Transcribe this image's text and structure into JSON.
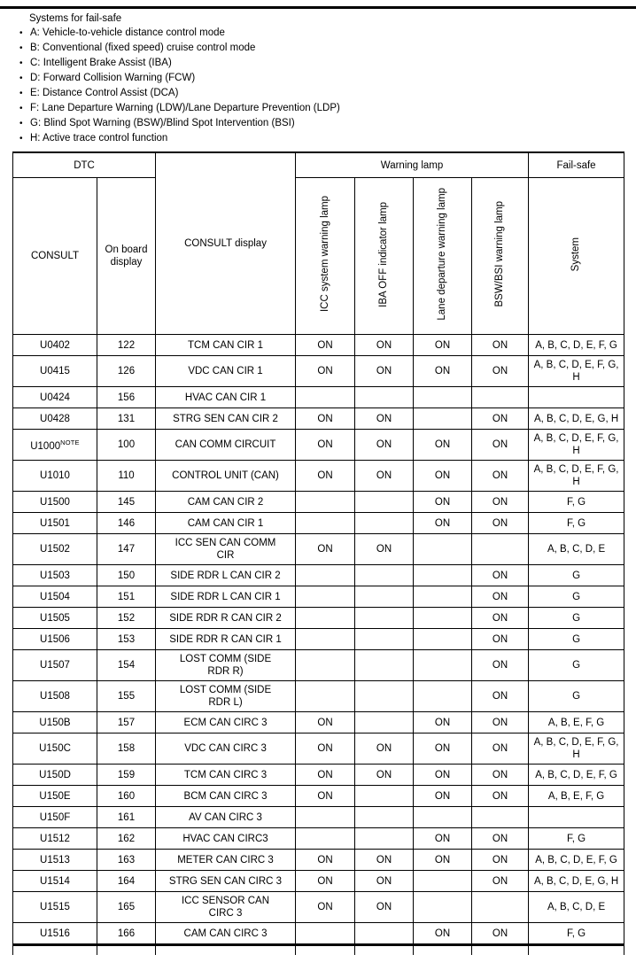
{
  "page": {
    "intro_title": "Systems for fail-safe",
    "bullets": [
      "A: Vehicle-to-vehicle distance control mode",
      "B: Conventional (fixed speed) cruise control mode",
      "C: Intelligent Brake Assist (IBA)",
      "D: Forward Collision Warning (FCW)",
      "E: Distance Control Assist (DCA)",
      "F: Lane Departure Warning (LDW)/Lane Departure Prevention (LDP)",
      "G: Blind Spot Warning (BSW)/Blind Spot Intervention (BSI)",
      "H: Active trace control function"
    ]
  },
  "table": {
    "header": {
      "dtc": "DTC",
      "consult": "CONSULT",
      "onboard": "On board\ndisplay",
      "consult_display": "CONSULT display",
      "warning_lamp": "Warning lamp",
      "lamp_cols": [
        "ICC system warning lamp",
        "IBA OFF indicator lamp",
        "Lane departure warning lamp",
        "BSW/BSI warning lamp"
      ],
      "fail_safe": "Fail-safe",
      "system": "System"
    },
    "rows": [
      {
        "consult": "U0402",
        "note": "",
        "onboard": "122",
        "display": "TCM CAN CIR 1",
        "lamps": [
          "ON",
          "ON",
          "ON",
          "ON"
        ],
        "system": "A, B, C, D, E, F, G"
      },
      {
        "consult": "U0415",
        "note": "",
        "onboard": "126",
        "display": "VDC CAN CIR 1",
        "lamps": [
          "ON",
          "ON",
          "ON",
          "ON"
        ],
        "system": "A, B, C, D, E, F, G,\nH"
      },
      {
        "consult": "U0424",
        "note": "",
        "onboard": "156",
        "display": "HVAC CAN CIR 1",
        "lamps": [
          "",
          "",
          "",
          ""
        ],
        "system": ""
      },
      {
        "consult": "U0428",
        "note": "",
        "onboard": "131",
        "display": "STRG SEN CAN CIR 2",
        "lamps": [
          "ON",
          "ON",
          "",
          "ON"
        ],
        "system": "A, B, C, D, E, G, H"
      },
      {
        "consult": "U1000",
        "note": "NOTE",
        "onboard": "100",
        "display": "CAN COMM CIRCUIT",
        "lamps": [
          "ON",
          "ON",
          "ON",
          "ON"
        ],
        "system": "A, B, C, D, E, F, G,\nH"
      },
      {
        "consult": "U1010",
        "note": "",
        "onboard": "110",
        "display": "CONTROL UNIT (CAN)",
        "lamps": [
          "ON",
          "ON",
          "ON",
          "ON"
        ],
        "system": "A, B, C, D, E, F, G,\nH"
      },
      {
        "consult": "U1500",
        "note": "",
        "onboard": "145",
        "display": "CAM CAN CIR 2",
        "lamps": [
          "",
          "",
          "ON",
          "ON"
        ],
        "system": "F, G"
      },
      {
        "consult": "U1501",
        "note": "",
        "onboard": "146",
        "display": "CAM CAN CIR 1",
        "lamps": [
          "",
          "",
          "ON",
          "ON"
        ],
        "system": "F, G"
      },
      {
        "consult": "U1502",
        "note": "",
        "onboard": "147",
        "display": "ICC SEN CAN COMM\nCIR",
        "lamps": [
          "ON",
          "ON",
          "",
          ""
        ],
        "system": "A, B, C, D, E"
      },
      {
        "consult": "U1503",
        "note": "",
        "onboard": "150",
        "display": "SIDE RDR L CAN CIR 2",
        "lamps": [
          "",
          "",
          "",
          "ON"
        ],
        "system": "G"
      },
      {
        "consult": "U1504",
        "note": "",
        "onboard": "151",
        "display": "SIDE RDR L CAN CIR 1",
        "lamps": [
          "",
          "",
          "",
          "ON"
        ],
        "system": "G"
      },
      {
        "consult": "U1505",
        "note": "",
        "onboard": "152",
        "display": "SIDE RDR R CAN CIR 2",
        "lamps": [
          "",
          "",
          "",
          "ON"
        ],
        "system": "G"
      },
      {
        "consult": "U1506",
        "note": "",
        "onboard": "153",
        "display": "SIDE RDR R CAN CIR 1",
        "lamps": [
          "",
          "",
          "",
          "ON"
        ],
        "system": "G"
      },
      {
        "consult": "U1507",
        "note": "",
        "onboard": "154",
        "display": "LOST COMM (SIDE\nRDR R)",
        "lamps": [
          "",
          "",
          "",
          "ON"
        ],
        "system": "G"
      },
      {
        "consult": "U1508",
        "note": "",
        "onboard": "155",
        "display": "LOST COMM (SIDE\nRDR L)",
        "lamps": [
          "",
          "",
          "",
          "ON"
        ],
        "system": "G"
      },
      {
        "consult": "U150B",
        "note": "",
        "onboard": "157",
        "display": "ECM CAN CIRC 3",
        "lamps": [
          "ON",
          "",
          "ON",
          "ON"
        ],
        "system": "A, B, E, F, G"
      },
      {
        "consult": "U150C",
        "note": "",
        "onboard": "158",
        "display": "VDC CAN CIRC 3",
        "lamps": [
          "ON",
          "ON",
          "ON",
          "ON"
        ],
        "system": "A, B, C, D, E, F, G,\nH"
      },
      {
        "consult": "U150D",
        "note": "",
        "onboard": "159",
        "display": "TCM CAN CIRC 3",
        "lamps": [
          "ON",
          "ON",
          "ON",
          "ON"
        ],
        "system": "A, B, C, D, E, F, G"
      },
      {
        "consult": "U150E",
        "note": "",
        "onboard": "160",
        "display": "BCM CAN CIRC 3",
        "lamps": [
          "ON",
          "",
          "ON",
          "ON"
        ],
        "system": "A, B, E, F, G"
      },
      {
        "consult": "U150F",
        "note": "",
        "onboard": "161",
        "display": "AV CAN CIRC 3",
        "lamps": [
          "",
          "",
          "",
          ""
        ],
        "system": ""
      },
      {
        "consult": "U1512",
        "note": "",
        "onboard": "162",
        "display": "HVAC CAN CIRC3",
        "lamps": [
          "",
          "",
          "ON",
          "ON"
        ],
        "system": "F, G"
      },
      {
        "consult": "U1513",
        "note": "",
        "onboard": "163",
        "display": "METER CAN CIRC 3",
        "lamps": [
          "ON",
          "ON",
          "ON",
          "ON"
        ],
        "system": "A, B, C, D, E, F, G"
      },
      {
        "consult": "U1514",
        "note": "",
        "onboard": "164",
        "display": "STRG SEN CAN CIRC 3",
        "lamps": [
          "ON",
          "ON",
          "",
          "ON"
        ],
        "system": "A, B, C, D, E, G, H"
      },
      {
        "consult": "U1515",
        "note": "",
        "onboard": "165",
        "display": "ICC SENSOR CAN\nCIRC 3",
        "lamps": [
          "ON",
          "ON",
          "",
          ""
        ],
        "system": "A, B, C, D, E"
      },
      {
        "consult": "U1516",
        "note": "",
        "onboard": "166",
        "display": "CAM CAN CIRC 3",
        "lamps": [
          "",
          "",
          "ON",
          "ON"
        ],
        "system": "F, G"
      }
    ]
  }
}
